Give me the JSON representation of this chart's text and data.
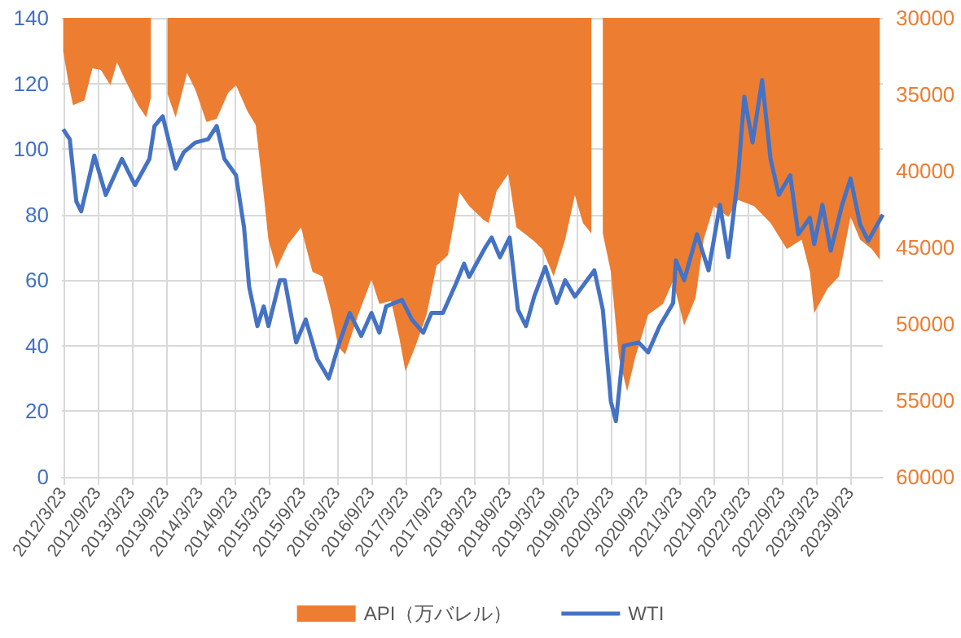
{
  "chart_data": {
    "type": "area",
    "xlim": [
      "2012-03-16",
      "2024-03-13"
    ],
    "xticks": [
      {
        "value": "2012-03-23",
        "label": "2012/3/23"
      },
      {
        "value": "2012-09-23",
        "label": "2012/9/23"
      },
      {
        "value": "2013-03-23",
        "label": "2013/3/23"
      },
      {
        "value": "2013-09-23",
        "label": "2013/9/23"
      },
      {
        "value": "2014-03-23",
        "label": "2014/3/23"
      },
      {
        "value": "2014-09-23",
        "label": "2014/9/23"
      },
      {
        "value": "2015-03-23",
        "label": "2015/3/23"
      },
      {
        "value": "2015-09-23",
        "label": "2015/9/23"
      },
      {
        "value": "2016-03-23",
        "label": "2016/3/23"
      },
      {
        "value": "2016-09-23",
        "label": "2016/9/23"
      },
      {
        "value": "2017-03-23",
        "label": "2017/3/23"
      },
      {
        "value": "2017-09-23",
        "label": "2017/9/23"
      },
      {
        "value": "2018-03-23",
        "label": "2018/3/23"
      },
      {
        "value": "2018-09-23",
        "label": "2018/9/23"
      },
      {
        "value": "2019-03-23",
        "label": "2019/3/23"
      },
      {
        "value": "2019-09-23",
        "label": "2019/9/23"
      },
      {
        "value": "2020-03-23",
        "label": "2020/3/23"
      },
      {
        "value": "2020-09-23",
        "label": "2020/9/23"
      },
      {
        "value": "2021-03-23",
        "label": "2021/3/23"
      },
      {
        "value": "2021-09-23",
        "label": "2021/9/23"
      },
      {
        "value": "2022-03-23",
        "label": "2022/3/23"
      },
      {
        "value": "2022-09-23",
        "label": "2022/9/23"
      },
      {
        "value": "2023-03-23",
        "label": "2023/3/23"
      },
      {
        "value": "2023-09-23",
        "label": "2023/9/23"
      }
    ],
    "ylim": [
      0,
      140
    ],
    "yticks": [
      0,
      20,
      40,
      60,
      80,
      100,
      120,
      140
    ],
    "y2lim": [
      60000,
      30000
    ],
    "y2ticks": [
      30000,
      35000,
      40000,
      45000,
      50000,
      55000,
      60000
    ],
    "grid": true,
    "legend": "bottom",
    "series": [
      {
        "name": "API（万バレル）",
        "axis": "y2",
        "color": "#ed7d31",
        "x": [
          "2012-03-23",
          "2012-04-18",
          "2012-05-14",
          "2012-07-14",
          "2012-08-26",
          "2012-10-10",
          "2012-11-30",
          "2013-01-04",
          "2013-02-18",
          "2013-04-26",
          "2013-06-09",
          "2013-07-04",
          "2013-08-10",
          "2013-09-05",
          "2013-10-01",
          "2013-11-13",
          "2014-01-13",
          "2014-02-26",
          "2014-04-26",
          "2014-06-20",
          "2014-08-20",
          "2014-10-01",
          "2014-12-01",
          "2015-01-14",
          "2015-02-26",
          "2015-03-23",
          "2015-05-05",
          "2015-07-05",
          "2015-09-13",
          "2015-11-13",
          "2016-01-05",
          "2016-02-18",
          "2016-03-30",
          "2016-05-05",
          "2016-07-14",
          "2016-09-23",
          "2016-11-04",
          "2017-01-05",
          "2017-02-18",
          "2017-03-23",
          "2017-05-14",
          "2017-07-14",
          "2017-09-05",
          "2017-11-05",
          "2018-01-05",
          "2018-02-26",
          "2018-05-14",
          "2018-06-09",
          "2018-07-23",
          "2018-09-23",
          "2018-11-05",
          "2018-12-18",
          "2019-02-08",
          "2019-03-23",
          "2019-05-23",
          "2019-07-23",
          "2019-09-13",
          "2019-10-26",
          "2019-12-10",
          "2020-01-04",
          "2020-02-09",
          "2020-03-23",
          "2020-05-05",
          "2020-06-18",
          "2020-07-31",
          "2020-10-08",
          "2020-12-26",
          "2021-02-18",
          "2021-04-18",
          "2021-06-18",
          "2021-07-31",
          "2021-09-23",
          "2021-12-10",
          "2022-01-31",
          "2022-04-26",
          "2022-07-23",
          "2022-10-18",
          "2023-01-05",
          "2023-02-18",
          "2023-03-13",
          "2023-05-23",
          "2023-07-23",
          "2023-09-23",
          "2023-11-13",
          "2024-01-14",
          "2024-02-26"
        ],
        "values": [
          32200,
          34100,
          35700,
          35400,
          33300,
          33400,
          34400,
          32900,
          34100,
          35700,
          36500,
          35200,
          null,
          null,
          35000,
          36500,
          33600,
          34700,
          36800,
          36600,
          34900,
          34400,
          36100,
          37000,
          41600,
          44500,
          46400,
          44800,
          43700,
          46600,
          46900,
          49000,
          51500,
          52000,
          49400,
          47100,
          48700,
          48500,
          50900,
          53100,
          51500,
          49400,
          46200,
          45500,
          41400,
          42300,
          43200,
          43400,
          41300,
          40200,
          43700,
          44100,
          44600,
          45100,
          46900,
          44500,
          41600,
          43400,
          44100,
          null,
          44100,
          46600,
          52200,
          54400,
          52200,
          49400,
          48700,
          47200,
          50100,
          48300,
          44500,
          42300,
          43000,
          41900,
          42300,
          43400,
          45100,
          44500,
          46600,
          49300,
          47700,
          46900,
          43000,
          44500,
          45100,
          45800
        ]
      },
      {
        "name": "WTI",
        "type": "line",
        "color": "#4472c4",
        "x": [
          "2012-03-23",
          "2012-04-27",
          "2012-06-01",
          "2012-06-27",
          "2012-09-05",
          "2012-11-05",
          "2013-01-30",
          "2013-04-10",
          "2013-06-26",
          "2013-07-23",
          "2013-09-05",
          "2013-11-13",
          "2013-12-26",
          "2014-02-26",
          "2014-05-05",
          "2014-06-20",
          "2014-07-31",
          "2014-10-01",
          "2014-11-13",
          "2014-12-10",
          "2015-01-23",
          "2015-02-26",
          "2015-03-23",
          "2015-05-23",
          "2015-06-18",
          "2015-08-18",
          "2015-10-08",
          "2015-12-08",
          "2016-02-08",
          "2016-03-30",
          "2016-05-30",
          "2016-07-30",
          "2016-09-23",
          "2016-11-04",
          "2016-12-10",
          "2017-03-04",
          "2017-04-26",
          "2017-06-26",
          "2017-08-09",
          "2017-10-09",
          "2017-12-18",
          "2018-01-30",
          "2018-02-26",
          "2018-05-23",
          "2018-06-26",
          "2018-08-09",
          "2018-09-30",
          "2018-11-13",
          "2018-12-26",
          "2019-02-08",
          "2019-04-08",
          "2019-06-08",
          "2019-07-23",
          "2019-09-13",
          "2019-12-26",
          "2020-02-09",
          "2020-03-23",
          "2020-04-19",
          "2020-05-31",
          "2020-08-18",
          "2020-10-08",
          "2020-12-08",
          "2021-02-18",
          "2021-03-05",
          "2021-04-18",
          "2021-06-26",
          "2021-08-26",
          "2021-10-26",
          "2021-12-10",
          "2022-01-31",
          "2022-03-05",
          "2022-04-18",
          "2022-06-08",
          "2022-07-23",
          "2022-09-05",
          "2022-11-05",
          "2022-12-18",
          "2023-02-18",
          "2023-03-13",
          "2023-04-26",
          "2023-06-09",
          "2023-08-09",
          "2023-09-23",
          "2023-11-13",
          "2023-12-26",
          "2024-03-13"
        ],
        "values": [
          106,
          103,
          84,
          81,
          98,
          86,
          97,
          89,
          97,
          107,
          110,
          94,
          99,
          102,
          103,
          107,
          97,
          92,
          76,
          58,
          46,
          52,
          46,
          60,
          60,
          41,
          48,
          36,
          30,
          40,
          50,
          43,
          50,
          44,
          52,
          54,
          48,
          44,
          50,
          50,
          59,
          65,
          61,
          70,
          73,
          67,
          73,
          51,
          46,
          55,
          64,
          53,
          60,
          55,
          63,
          51,
          23,
          17,
          40,
          41,
          38,
          46,
          53,
          66,
          60,
          74,
          63,
          83,
          67,
          92,
          116,
          102,
          121,
          97,
          86,
          92,
          74,
          79,
          71,
          83,
          69,
          83,
          91,
          77,
          72,
          80
        ]
      }
    ]
  }
}
